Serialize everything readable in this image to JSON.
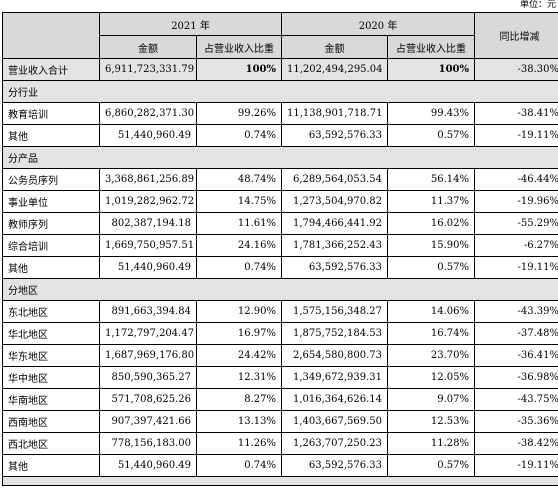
{
  "unit_label": "单位：元",
  "headers": {
    "year_2021": "2021 年",
    "year_2020": "2020 年",
    "change": "同比增减",
    "amount": "金额",
    "share": "占营业收入比重"
  },
  "total": {
    "label": "营业收入合计",
    "amt2021": "6,911,723,331.79",
    "pct2021": "100%",
    "amt2020": "11,202,494,295.04",
    "pct2020": "100%",
    "change": "-38.30%"
  },
  "industry": {
    "title": "分行业",
    "rows": [
      {
        "label": "教育培训",
        "amt2021": "6,860,282,371.30",
        "pct2021": "99.26%",
        "amt2020": "11,138,901,718.71",
        "pct2020": "99.43%",
        "change": "-38.41%"
      },
      {
        "label": "其他",
        "amt2021": "51,440,960.49",
        "pct2021": "0.74%",
        "amt2020": "63,592,576.33",
        "pct2020": "0.57%",
        "change": "-19.11%"
      }
    ]
  },
  "product": {
    "title": "分产品",
    "rows": [
      {
        "label": "公务员序列",
        "amt2021": "3,368,861,256.89",
        "pct2021": "48.74%",
        "amt2020": "6,289,564,053.54",
        "pct2020": "56.14%",
        "change": "-46.44%"
      },
      {
        "label": "事业单位",
        "amt2021": "1,019,282,962.72",
        "pct2021": "14.75%",
        "amt2020": "1,273,504,970.82",
        "pct2020": "11.37%",
        "change": "-19.96%"
      },
      {
        "label": "教师序列",
        "amt2021": "802,387,194.18",
        "pct2021": "11.61%",
        "amt2020": "1,794,466,441.92",
        "pct2020": "16.02%",
        "change": "-55.29%"
      },
      {
        "label": "综合培训",
        "amt2021": "1,669,750,957.51",
        "pct2021": "24.16%",
        "amt2020": "1,781,366,252.43",
        "pct2020": "15.90%",
        "change": "-6.27%"
      },
      {
        "label": "其他",
        "amt2021": "51,440,960.49",
        "pct2021": "0.74%",
        "amt2020": "63,592,576.33",
        "pct2020": "0.57%",
        "change": "-19.11%"
      }
    ]
  },
  "region": {
    "title": "分地区",
    "rows": [
      {
        "label": "东北地区",
        "amt2021": "891,663,394.84",
        "pct2021": "12.90%",
        "amt2020": "1,575,156,348.27",
        "pct2020": "14.06%",
        "change": "-43.39%"
      },
      {
        "label": "华北地区",
        "amt2021": "1,172,797,204.47",
        "pct2021": "16.97%",
        "amt2020": "1,875,752,184.53",
        "pct2020": "16.74%",
        "change": "-37.48%"
      },
      {
        "label": "华东地区",
        "amt2021": "1,687,969,176.80",
        "pct2021": "24.42%",
        "amt2020": "2,654,580,800.73",
        "pct2020": "23.70%",
        "change": "-36.41%"
      },
      {
        "label": "华中地区",
        "amt2021": "850,590,365.27",
        "pct2021": "12.31%",
        "amt2020": "1,349,672,939.31",
        "pct2020": "12.05%",
        "change": "-36.98%"
      },
      {
        "label": "华南地区",
        "amt2021": "571,708,625.26",
        "pct2021": "8.27%",
        "amt2020": "1,016,364,626.14",
        "pct2020": "9.07%",
        "change": "-43.75%"
      },
      {
        "label": "西南地区",
        "amt2021": "907,397,421.66",
        "pct2021": "13.13%",
        "amt2020": "1,403,667,569.50",
        "pct2020": "12.53%",
        "change": "-35.36%"
      },
      {
        "label": "西北地区",
        "amt2021": "778,156,183.00",
        "pct2021": "11.26%",
        "amt2020": "1,263,707,250.23",
        "pct2020": "11.28%",
        "change": "-38.42%"
      },
      {
        "label": "其他",
        "amt2021": "51,440,960.49",
        "pct2021": "0.74%",
        "amt2020": "63,592,576.33",
        "pct2020": "0.57%",
        "change": "-19.11%"
      }
    ]
  }
}
